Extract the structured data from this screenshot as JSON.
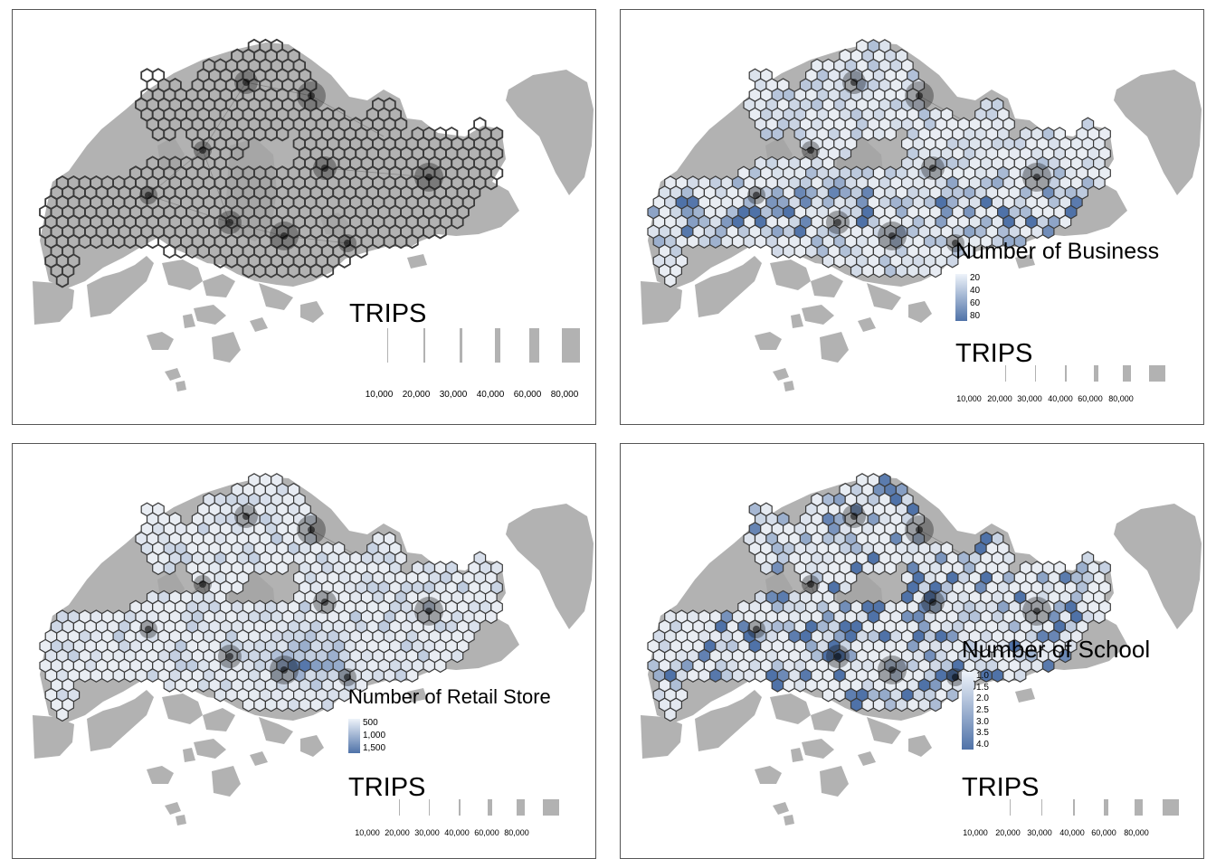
{
  "colors": {
    "land": "#b2b2b2",
    "hex_default": "#e8e8e8",
    "hex_stroke": "#3a3a3a",
    "water": "#ffffff",
    "ramp_low": "#eef3fa",
    "ramp_high": "#4f72a8"
  },
  "panels": [
    {
      "id": "trips",
      "legend_title": "",
      "gradient_labels": [],
      "trips_title": "TRIPS",
      "trips_labels": [
        "10,000",
        "20,000",
        "30,000",
        "40,000",
        "60,000",
        "80,000"
      ]
    },
    {
      "id": "business",
      "legend_title": "Number of Business",
      "gradient_labels": [
        "20",
        "40",
        "60",
        "80"
      ],
      "trips_title": "TRIPS",
      "trips_labels": [
        "10,000",
        "20,000",
        "30,000",
        "40,000",
        "60,000",
        "80,000"
      ]
    },
    {
      "id": "retail",
      "legend_title": "Number of Retail Store",
      "gradient_labels": [
        "500",
        "1,000",
        "1,500"
      ],
      "trips_title": "TRIPS",
      "trips_labels": [
        "10,000",
        "20,000",
        "30,000",
        "40,000",
        "60,000",
        "80,000"
      ]
    },
    {
      "id": "school",
      "legend_title": "Number of School",
      "gradient_labels": [
        "1.0",
        "1.5",
        "2.0",
        "2.5",
        "3.0",
        "3.5",
        "4.0"
      ],
      "trips_title": "TRIPS",
      "trips_labels": [
        "10,000",
        "20,000",
        "30,000",
        "40,000",
        "60,000",
        "80,000"
      ]
    }
  ]
}
